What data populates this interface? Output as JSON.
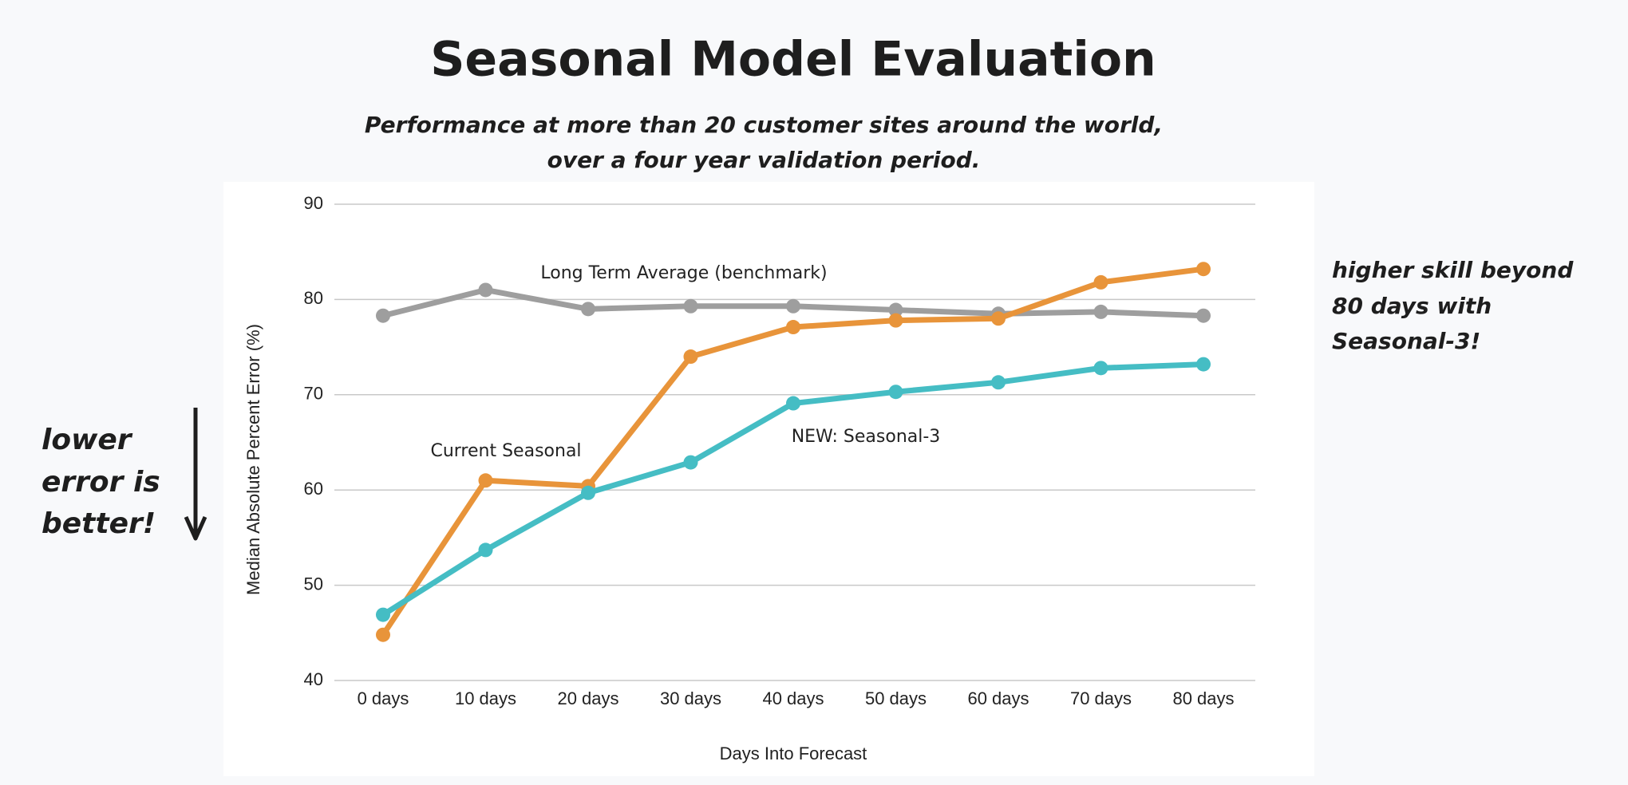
{
  "chart_data": {
    "type": "line",
    "title": "Seasonal Model Evaluation",
    "subtitle": [
      "Performance at more than 20 customer sites around the world,",
      "over a four year validation period."
    ],
    "x_label": "Days Into Forecast",
    "y_label": "Median Absolute Percent Error (%)",
    "categories": [
      "0 days",
      "10 days",
      "20 days",
      "30 days",
      "40 days",
      "50 days",
      "60 days",
      "70 days",
      "80 days"
    ],
    "series": [
      {
        "name": "Long Term Average (benchmark)",
        "color": "#9e9e9e",
        "values": [
          78.3,
          81.0,
          79.0,
          79.3,
          79.3,
          78.9,
          78.5,
          78.7,
          78.3
        ]
      },
      {
        "name": "Current Seasonal",
        "color": "#e8943a",
        "values": [
          44.8,
          61.0,
          60.4,
          74.0,
          77.1,
          77.8,
          78.0,
          81.8,
          83.2
        ]
      },
      {
        "name": "NEW: Seasonal-3",
        "color": "#45bdc4",
        "values": [
          46.9,
          53.7,
          59.7,
          62.9,
          69.1,
          70.3,
          71.3,
          72.8,
          73.2
        ]
      }
    ],
    "ylim": [
      40,
      90
    ],
    "yticks": [
      40,
      50,
      60,
      70,
      80,
      90
    ],
    "grid": true,
    "annotations": [
      {
        "lines": [
          "lower",
          "error is",
          "better!"
        ]
      },
      {
        "lines": [
          "higher skill beyond",
          "80 days with",
          "Seasonal-3!"
        ]
      }
    ]
  }
}
